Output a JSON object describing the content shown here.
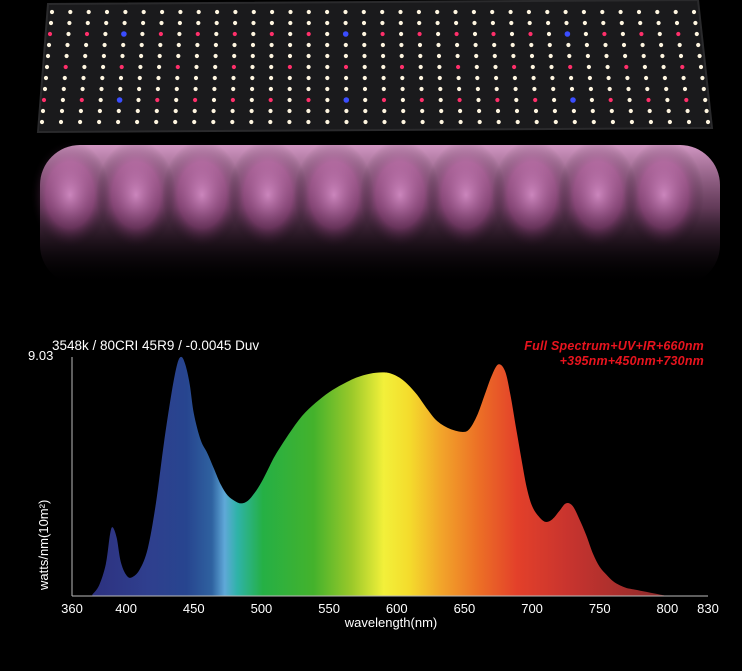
{
  "header": {
    "spec_label": "3548k / 80CRI 45R9 / -0.0045 Duv"
  },
  "legend": {
    "line1": "Full Spectrum+UV+IR+660nm",
    "line2": "+395nm+450nm+730nm",
    "color": "#e8141e"
  },
  "photo": {
    "description_icon": "led-grow-light-panel-icon",
    "led_colors": [
      "#fff6e0",
      "#ff2f6a",
      "#3a4dff"
    ]
  },
  "chart_data": {
    "type": "area",
    "title": "3548k / 80CRI 45R9 / -0.0045 Duv",
    "xlabel": "wavelength(nm)",
    "ylabel": "watts/nm(10m²)",
    "y_top_label": "9.03",
    "xlim": [
      360,
      830
    ],
    "ylim": [
      0,
      9.03
    ],
    "x_ticks": [
      360,
      400,
      450,
      500,
      550,
      600,
      650,
      700,
      750,
      800,
      830
    ],
    "x": [
      375,
      380,
      385,
      388,
      390,
      393,
      396,
      400,
      404,
      410,
      416,
      422,
      428,
      434,
      438,
      441,
      444,
      447,
      450,
      455,
      460,
      465,
      470,
      475,
      480,
      485,
      490,
      495,
      500,
      505,
      510,
      520,
      530,
      540,
      550,
      560,
      570,
      580,
      590,
      596,
      602,
      608,
      615,
      622,
      630,
      640,
      650,
      655,
      660,
      665,
      670,
      675,
      680,
      684,
      688,
      692,
      696,
      700,
      705,
      710,
      715,
      720,
      725,
      730,
      735,
      740,
      745,
      750,
      755,
      760,
      765,
      770,
      775,
      780,
      785,
      790,
      795,
      800
    ],
    "values": [
      0.05,
      0.4,
      1.2,
      2.3,
      2.6,
      2.2,
      1.3,
      0.8,
      0.7,
      1.0,
      1.8,
      3.5,
      5.8,
      7.8,
      8.8,
      9.03,
      8.7,
      8.0,
      6.9,
      5.9,
      5.4,
      4.8,
      4.2,
      3.8,
      3.6,
      3.5,
      3.6,
      3.9,
      4.3,
      4.8,
      5.3,
      6.1,
      6.8,
      7.3,
      7.7,
      8.0,
      8.25,
      8.4,
      8.45,
      8.4,
      8.25,
      8.0,
      7.6,
      7.1,
      6.6,
      6.3,
      6.2,
      6.4,
      6.9,
      7.6,
      8.3,
      8.75,
      8.5,
      7.6,
      6.4,
      5.2,
      4.1,
      3.4,
      3.0,
      2.8,
      2.9,
      3.2,
      3.5,
      3.4,
      2.9,
      2.3,
      1.6,
      1.1,
      0.8,
      0.55,
      0.4,
      0.3,
      0.25,
      0.2,
      0.15,
      0.1,
      0.05,
      0.0
    ]
  }
}
